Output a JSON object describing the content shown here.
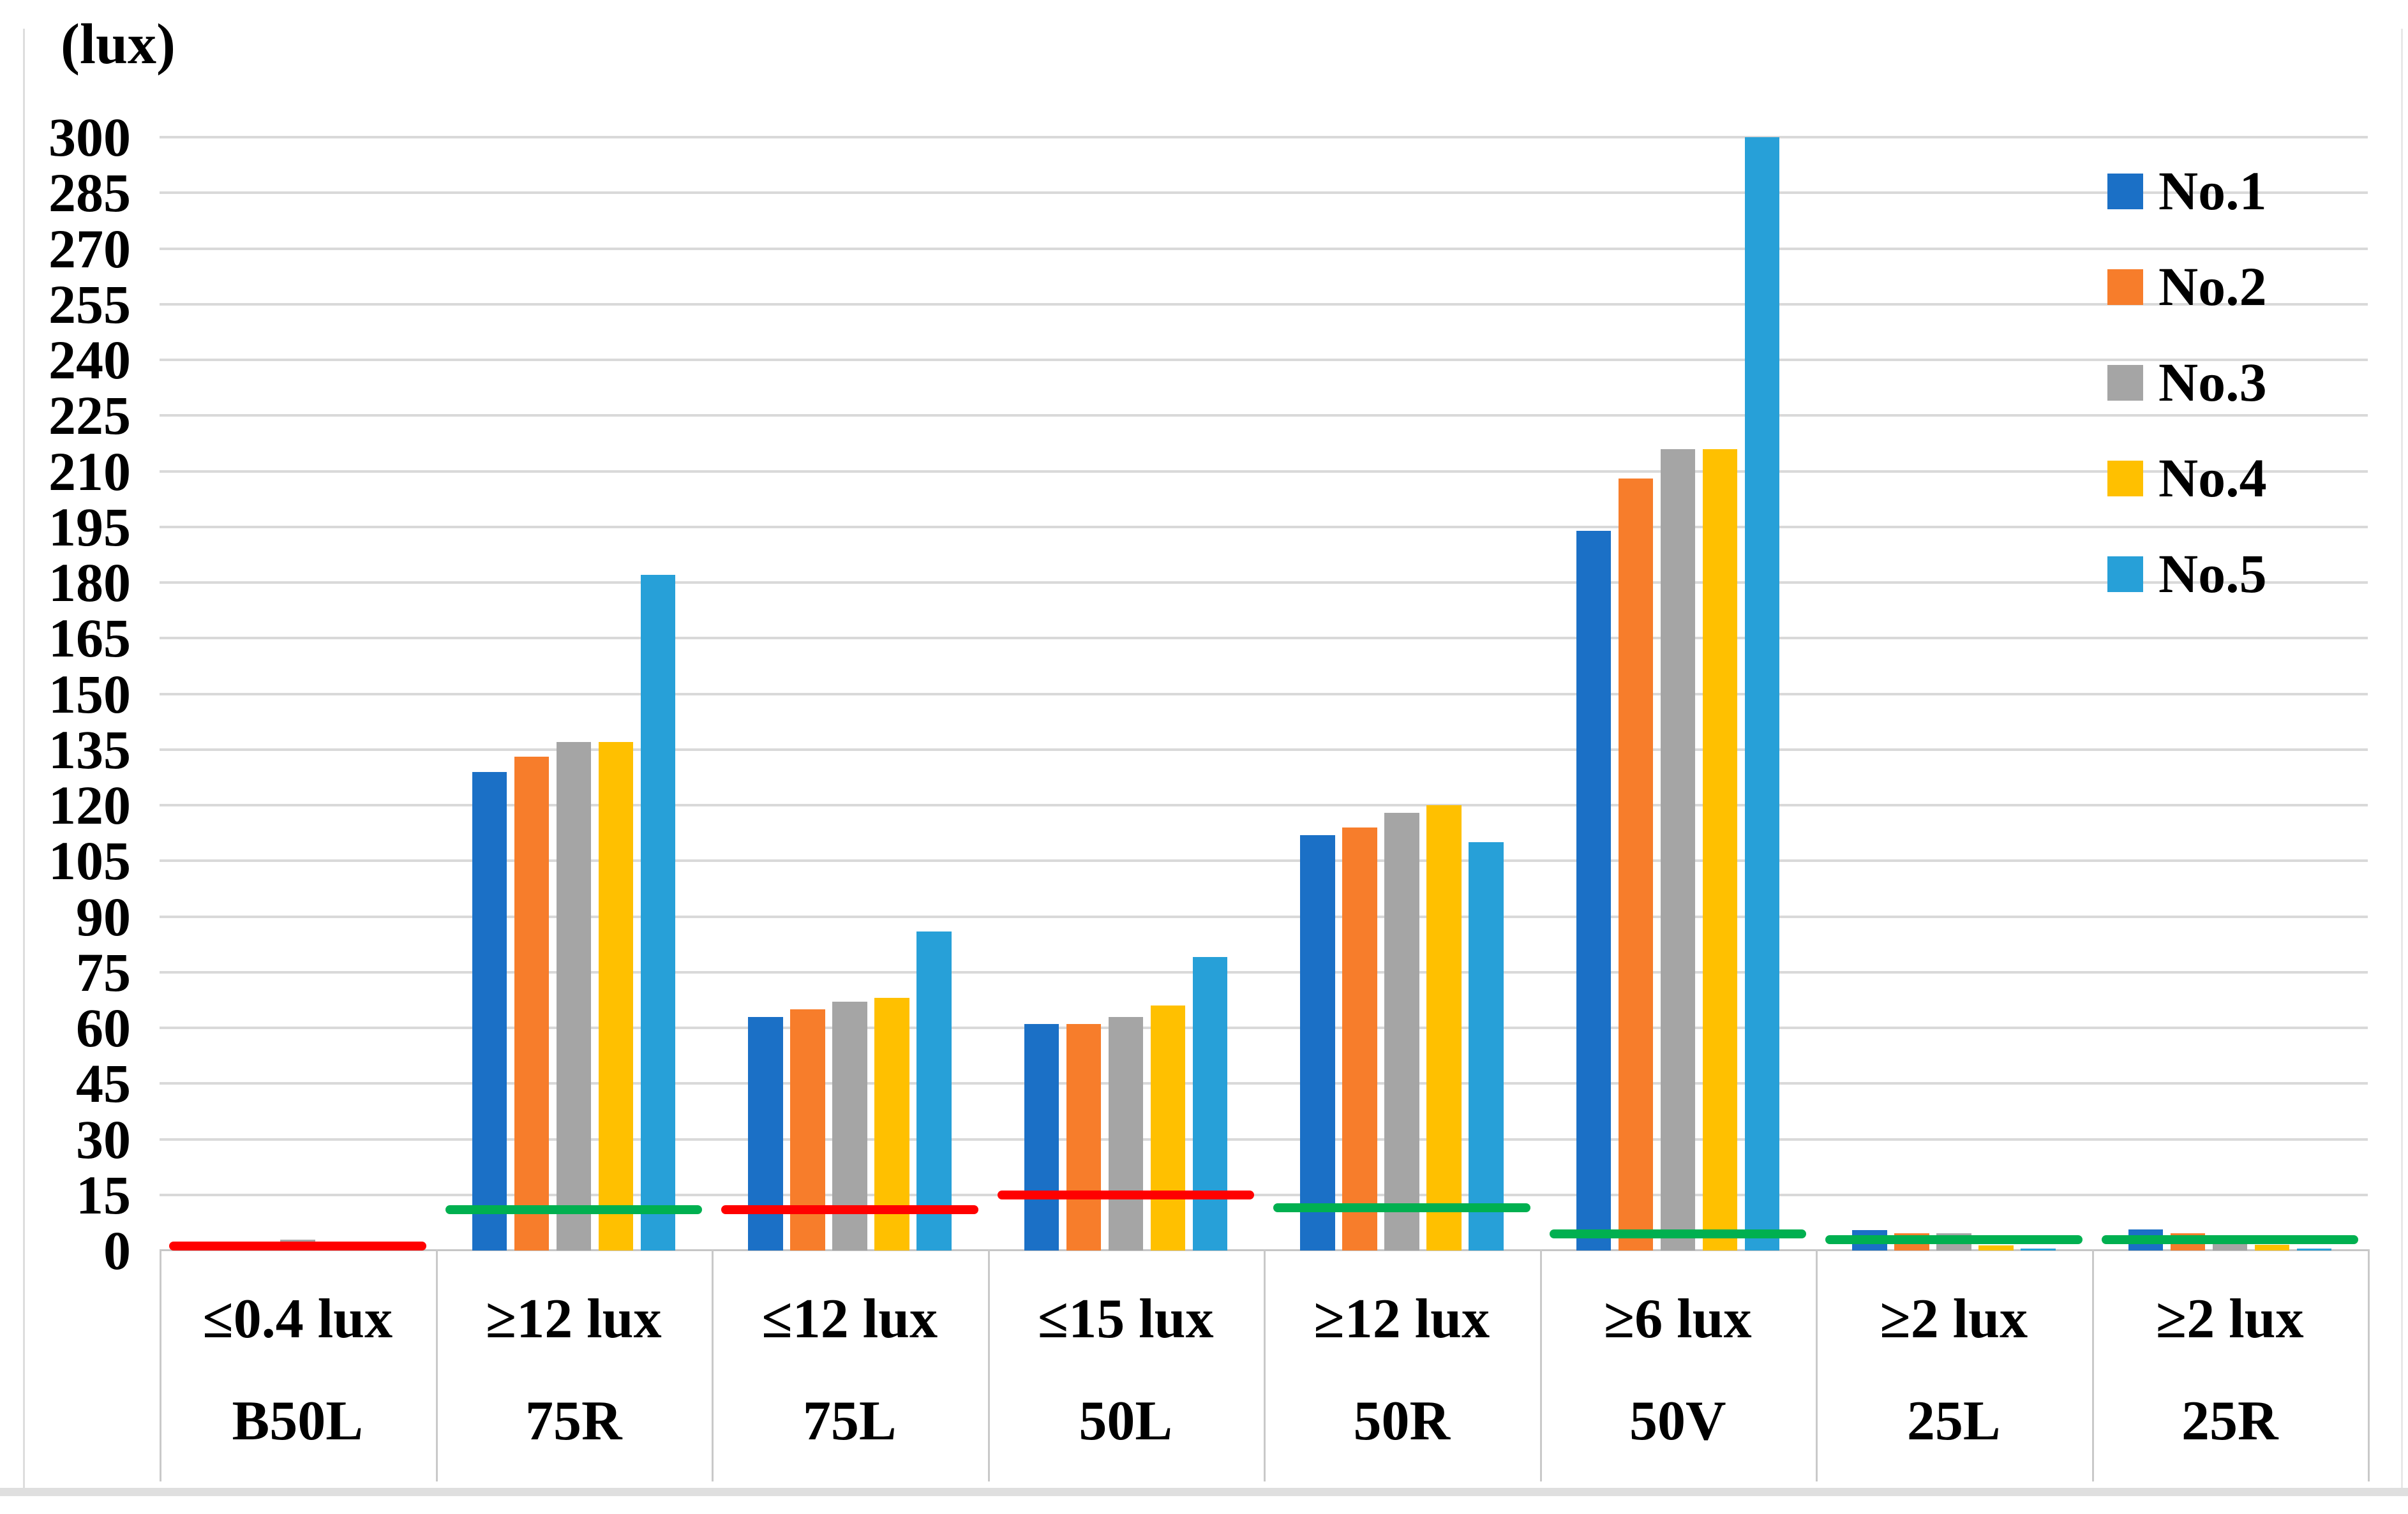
{
  "chart_data": {
    "type": "bar",
    "title": "",
    "ylabel": "(lux)",
    "xlabel": "",
    "ylim": [
      0,
      300
    ],
    "ytick_step": 15,
    "grid": true,
    "legend_position": "top-right",
    "series": [
      {
        "name": "No.1",
        "color": "#1b70c6",
        "values": [
          1,
          129,
          63,
          61,
          112,
          194,
          5.5,
          5.7
        ]
      },
      {
        "name": "No.2",
        "color": "#f77d2b",
        "values": [
          1,
          133,
          65,
          61,
          114,
          208,
          4.6,
          4.6
        ]
      },
      {
        "name": "No.3",
        "color": "#a5a5a5",
        "values": [
          3,
          137,
          67,
          63,
          118,
          216,
          4.6,
          1.7
        ]
      },
      {
        "name": "No.4",
        "color": "#ffc000",
        "values": [
          1,
          137,
          68,
          66,
          120,
          216,
          1.4,
          1.5
        ]
      },
      {
        "name": "No.5",
        "color": "#27a0d8",
        "values": [
          0.5,
          182,
          86,
          79,
          110,
          300,
          0.5,
          0.5
        ]
      }
    ],
    "categories": [
      {
        "requirement": "≤0.4 lux",
        "point": "B50L",
        "threshold_value": 1.2,
        "threshold_color": "#ff0000"
      },
      {
        "requirement": "≥12 lux",
        "point": "75R",
        "threshold_value": 11,
        "threshold_color": "#00b050"
      },
      {
        "requirement": "≤12 lux",
        "point": "75L",
        "threshold_value": 11,
        "threshold_color": "#ff0000"
      },
      {
        "requirement": "≤15 lux",
        "point": "50L",
        "threshold_value": 15,
        "threshold_color": "#ff0000"
      },
      {
        "requirement": "≥12 lux",
        "point": "50R",
        "threshold_value": 11.5,
        "threshold_color": "#00b050"
      },
      {
        "requirement": "≥6 lux",
        "point": "50V",
        "threshold_value": 4.5,
        "threshold_color": "#00b050"
      },
      {
        "requirement": "≥2 lux",
        "point": "25L",
        "threshold_value": 2.9,
        "threshold_color": "#00b050"
      },
      {
        "requirement": "≥2 lux",
        "point": "25R",
        "threshold_value": 2.9,
        "threshold_color": "#00b050"
      }
    ],
    "gridline_color": "#d9d9d9",
    "text_color": "#000000"
  }
}
